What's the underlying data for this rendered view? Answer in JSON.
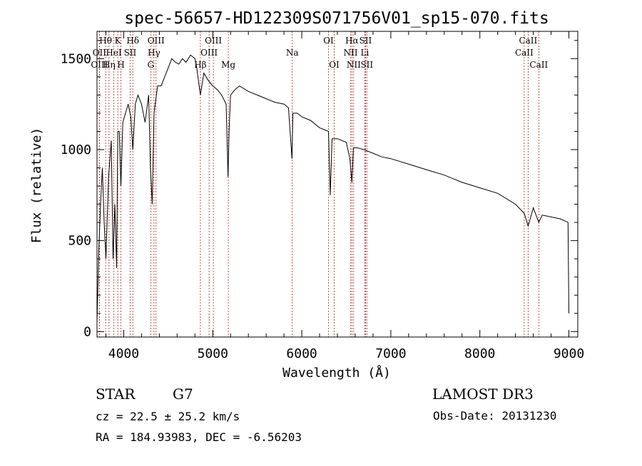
{
  "chart_data": {
    "type": "line",
    "title": "spec-56657-HD122309S071756V01_sp15-070.fits",
    "xlabel": "Wavelength (Å)",
    "ylabel": "Flux (relative)",
    "xlim": [
      3700,
      9100
    ],
    "ylim": [
      -30,
      1650
    ],
    "xticks": [
      4000,
      5000,
      6000,
      7000,
      8000,
      9000
    ],
    "yticks": [
      0,
      500,
      1000,
      1500
    ],
    "grid": false,
    "series": [
      {
        "name": "spectrum",
        "x": [
          3700,
          3720,
          3740,
          3760,
          3780,
          3800,
          3830,
          3860,
          3880,
          3900,
          3920,
          3933,
          3950,
          3968,
          3990,
          4020,
          4050,
          4080,
          4102,
          4130,
          4160,
          4200,
          4240,
          4280,
          4300,
          4320,
          4340,
          4380,
          4420,
          4460,
          4500,
          4540,
          4580,
          4620,
          4660,
          4700,
          4750,
          4800,
          4820,
          4861,
          4900,
          4950,
          5000,
          5050,
          5100,
          5150,
          5172,
          5183,
          5200,
          5250,
          5300,
          5400,
          5500,
          5600,
          5700,
          5800,
          5850,
          5890,
          5900,
          5950,
          6000,
          6100,
          6200,
          6300,
          6320,
          6340,
          6400,
          6500,
          6540,
          6563,
          6580,
          6620,
          6700,
          6800,
          6900,
          7000,
          7200,
          7400,
          7600,
          7800,
          8000,
          8200,
          8400,
          8498,
          8542,
          8600,
          8662,
          8700,
          8800,
          8900,
          8990,
          9000
        ],
        "values": [
          50,
          450,
          700,
          900,
          600,
          400,
          850,
          1050,
          400,
          700,
          350,
          1100,
          1100,
          800,
          1150,
          1200,
          1250,
          1180,
          1000,
          1250,
          1300,
          1250,
          1150,
          1300,
          900,
          700,
          1200,
          1350,
          1350,
          1400,
          1450,
          1500,
          1480,
          1470,
          1500,
          1480,
          1520,
          1500,
          1450,
          1300,
          1420,
          1380,
          1350,
          1330,
          1300,
          1250,
          850,
          1100,
          1300,
          1330,
          1350,
          1320,
          1300,
          1280,
          1260,
          1250,
          1230,
          950,
          1200,
          1200,
          1180,
          1160,
          1120,
          1100,
          750,
          1060,
          1060,
          1040,
          950,
          820,
          1010,
          1010,
          1000,
          980,
          960,
          950,
          920,
          890,
          860,
          820,
          790,
          760,
          700,
          650,
          580,
          680,
          600,
          640,
          630,
          620,
          600,
          100
        ]
      }
    ],
    "lines": [
      {
        "name": "H-theta",
        "label": "Hθ",
        "x": 3797,
        "row": 0
      },
      {
        "name": "O-II-blue",
        "label": "OII",
        "x": 3727,
        "row": 1
      },
      {
        "name": "O-II-blue-2",
        "label": "OIII",
        "x": 3727,
        "row": 2
      },
      {
        "name": "K",
        "label": "K",
        "x": 3933,
        "row": 0
      },
      {
        "name": "He-I",
        "label": "HeI",
        "x": 3889,
        "row": 1
      },
      {
        "name": "H-eta",
        "label": "Hη",
        "x": 3835,
        "row": 2
      },
      {
        "name": "H-delta",
        "label": "Hδ",
        "x": 4102,
        "row": 0
      },
      {
        "name": "S-II-blue",
        "label": "SII",
        "x": 4072,
        "row": 1
      },
      {
        "name": "H",
        "label": "H",
        "x": 3968,
        "row": 2
      },
      {
        "name": "O-III-4363",
        "label": "OIII",
        "x": 4363,
        "row": 0
      },
      {
        "name": "H-gamma",
        "label": "Hγ",
        "x": 4340,
        "row": 1
      },
      {
        "name": "G",
        "label": "G",
        "x": 4304,
        "row": 2
      },
      {
        "name": "O-III-5007",
        "label": "OIII",
        "x": 5007,
        "row": 0
      },
      {
        "name": "O-III-4959",
        "label": "OIII",
        "x": 4959,
        "row": 1
      },
      {
        "name": "H-beta",
        "label": "Hβ",
        "x": 4861,
        "row": 2
      },
      {
        "name": "Mg",
        "label": "Mg",
        "x": 5175,
        "row": 2
      },
      {
        "name": "Na",
        "label": "Na",
        "x": 5893,
        "row": 1
      },
      {
        "name": "O-I-6300",
        "label": "OI",
        "x": 6300,
        "row": 0
      },
      {
        "name": "O-I-6364",
        "label": "OI",
        "x": 6364,
        "row": 2
      },
      {
        "name": "H-alpha",
        "label": "Hα",
        "x": 6563,
        "row": 0
      },
      {
        "name": "S-II-6716",
        "label": "SII",
        "x": 6716,
        "row": 0
      },
      {
        "name": "N-II-6548",
        "label": "NII",
        "x": 6548,
        "row": 1
      },
      {
        "name": "Li",
        "label": "Li",
        "x": 6708,
        "row": 1
      },
      {
        "name": "N-II-6583",
        "label": "NII",
        "x": 6583,
        "row": 2
      },
      {
        "name": "S-II-6731",
        "label": "SII",
        "x": 6731,
        "row": 2
      },
      {
        "name": "Ca-II-8542",
        "label": "CaII",
        "x": 8542,
        "row": 0
      },
      {
        "name": "Ca-II-8498",
        "label": "CaII",
        "x": 8498,
        "row": 1
      },
      {
        "name": "Ca-II-8662",
        "label": "CaII",
        "x": 8662,
        "row": 2
      }
    ]
  },
  "info": {
    "object_type": "STAR",
    "subclass": "G7",
    "survey": "LAMOST DR3",
    "redshift": "cz = 22.5 ± 25.2 km/s",
    "obs_date": "Obs-Date: 20131230",
    "coords": "RA = 184.93983, DEC =  -6.56203"
  },
  "colors": {
    "line_marker": "#b22222",
    "spectrum": "#000000"
  }
}
